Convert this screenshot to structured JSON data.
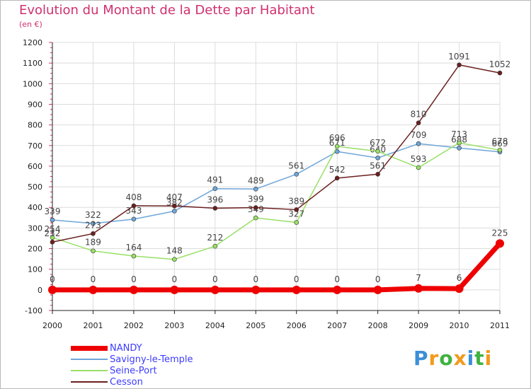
{
  "title": "Evolution du Montant de la Dette par Habitant",
  "subtitle": "(en €)",
  "colors": {
    "title": "#d1306f",
    "legend_text": "#3c3cff",
    "grid": "#dcdcdc",
    "axis": "#222222",
    "label": "#444444"
  },
  "legend": [
    {
      "label": "NANDY",
      "color": "#ee0000"
    },
    {
      "label": "Savigny-le-Temple",
      "color": "#6fa6d8"
    },
    {
      "label": "Seine-Port",
      "color": "#99e066"
    },
    {
      "label": "Cesson",
      "color": "#6b1f1f"
    }
  ],
  "brand": {
    "letters": [
      "P",
      "r",
      "o",
      "x",
      "i",
      "t",
      "i"
    ],
    "colors": [
      "#3c8fd8",
      "#f39a1b",
      "#3fb33f",
      "#f39a1b",
      "#3c8fd8",
      "#3fb33f",
      "#f39a1b"
    ]
  },
  "chart_data": {
    "type": "line",
    "title": "Evolution du Montant de la Dette par Habitant",
    "subtitle": "(en €)",
    "categories": [
      "2000",
      "2001",
      "2002",
      "2003",
      "2004",
      "2005",
      "2006",
      "2007",
      "2008",
      "2009",
      "2010",
      "2011"
    ],
    "ylim": [
      -100,
      1200
    ],
    "yticks": [
      -100,
      0,
      100,
      200,
      300,
      400,
      500,
      600,
      700,
      800,
      900,
      1000,
      1100,
      1200
    ],
    "grid": true,
    "legend_position": "bottom-left",
    "series": [
      {
        "name": "Savigny-le-Temple",
        "color": "#6fa6d8",
        "values": [
          339,
          322,
          343,
          382,
          491,
          489,
          561,
          671,
          640,
          709,
          688,
          669
        ]
      },
      {
        "name": "Seine-Port",
        "color": "#99e066",
        "values": [
          254,
          189,
          164,
          148,
          212,
          349,
          327,
          696,
          672,
          593,
          713,
          678
        ]
      },
      {
        "name": "Cesson",
        "color": "#6b1f1f",
        "values": [
          232,
          273,
          408,
          407,
          396,
          399,
          389,
          542,
          561,
          810,
          1091,
          1052
        ]
      },
      {
        "name": "NANDY",
        "color": "#ee0000",
        "values": [
          0,
          0,
          0,
          0,
          0,
          0,
          0,
          0,
          0,
          7,
          6,
          225
        ]
      }
    ]
  }
}
